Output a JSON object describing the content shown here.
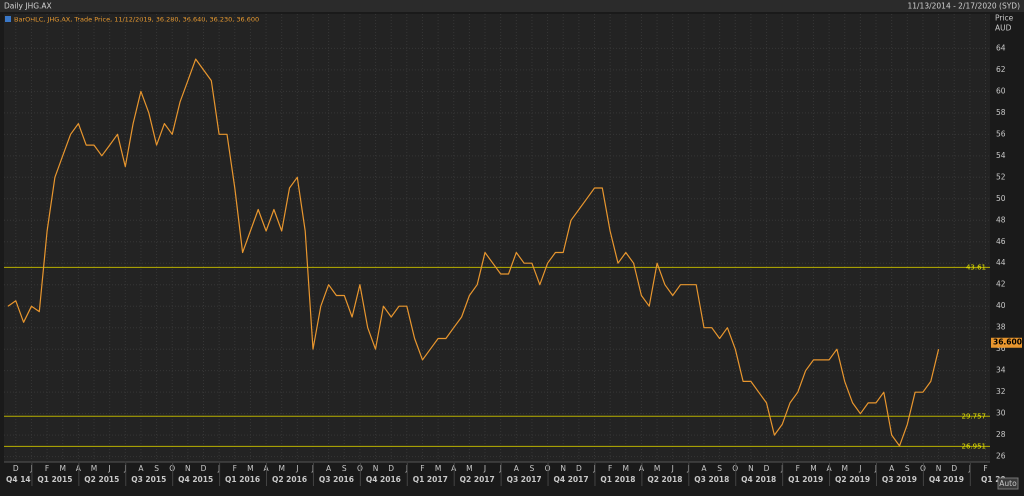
{
  "chart_data": {
    "type": "line",
    "title": "Daily JHG.AX",
    "date_range": "11/13/2014 - 2/17/2020 (SYD)",
    "legend": "BarOHLC, JHG.AX, Trade Price, 11/12/2019, 36.280, 36.640, 36.230, 36.600",
    "y_axis_label": [
      "Price",
      "AUD"
    ],
    "auto_button": "Auto",
    "color": "#e8962e",
    "grid": true,
    "categories": [
      null,
      "D",
      null,
      "J",
      null,
      "F",
      null,
      "M",
      null,
      "A",
      null,
      "M",
      null,
      "J",
      null,
      "J",
      null,
      "A",
      null,
      "S",
      null,
      "O",
      null,
      "N",
      null,
      "D",
      null,
      "J",
      null,
      "F",
      null,
      "M",
      null,
      "A",
      null,
      "M",
      null,
      "J",
      null,
      "J",
      null,
      "A",
      null,
      "S",
      null,
      "O",
      null,
      "N",
      null,
      "D",
      null,
      "J",
      null,
      "F",
      null,
      "M",
      null,
      "A",
      null,
      "M",
      null,
      "J",
      null,
      "J",
      null,
      "A",
      null,
      "S",
      null,
      "O",
      null,
      "N",
      null,
      "D",
      null,
      "J",
      null,
      "F",
      null,
      "M",
      null,
      "A",
      null,
      "M",
      null,
      "J",
      null,
      "J",
      null,
      "A",
      null,
      "S",
      null,
      "O",
      null,
      "N",
      null,
      "D",
      null,
      "J",
      null,
      "F",
      null,
      "M",
      null,
      "A",
      null,
      "M",
      null,
      "J",
      null,
      "J",
      null,
      "A",
      null,
      "S",
      null,
      "O",
      null,
      "N",
      null,
      "D",
      null,
      "J",
      null,
      "F"
    ],
    "quarters": [
      "Q4 14",
      "Q1 2015",
      "Q2 2015",
      "Q3 2015",
      "Q4 2015",
      "Q1 2016",
      "Q2 2016",
      "Q3 2016",
      "Q4 2016",
      "Q1 2017",
      "Q2 2017",
      "Q3 2017",
      "Q4 2017",
      "Q1 2018",
      "Q2 2018",
      "Q3 2018",
      "Q4 2018",
      "Q1 2019",
      "Q2 2019",
      "Q3 2019",
      "Q4 2019",
      "Q1 20"
    ],
    "values": [
      40,
      40.5,
      38.5,
      40,
      39.5,
      47,
      52,
      54,
      56,
      57,
      55,
      55,
      54,
      55,
      56,
      53,
      57,
      60,
      58,
      55,
      57,
      56,
      59,
      61,
      63,
      62,
      61,
      56,
      56,
      51,
      45,
      47,
      49,
      47,
      49,
      47,
      51,
      52,
      47,
      36,
      40,
      42,
      41,
      41,
      39,
      42,
      38,
      36,
      40,
      39,
      40,
      40,
      37,
      35,
      36,
      37,
      37,
      38,
      39,
      41,
      42,
      45,
      44,
      43,
      43,
      45,
      44,
      44,
      42,
      44,
      45,
      45,
      48,
      49,
      50,
      51,
      51,
      47,
      44,
      45,
      44,
      41,
      40,
      44,
      42,
      41,
      42,
      42,
      42,
      38,
      38,
      37,
      38,
      36,
      33,
      33,
      32,
      31,
      28,
      29,
      31,
      32,
      34,
      35,
      35,
      35,
      36,
      33,
      31,
      30,
      31,
      31,
      32,
      28,
      27,
      29,
      32,
      32,
      33,
      36,
      null,
      null,
      null,
      null,
      null,
      null
    ],
    "ylim": [
      25.5,
      67.2
    ],
    "yticks": [
      26,
      28,
      30,
      32,
      34,
      36,
      38,
      40,
      42,
      44,
      46,
      48,
      50,
      52,
      54,
      56,
      58,
      60,
      62,
      64
    ],
    "reference_lines": [
      43.61,
      29.757,
      26.951
    ],
    "last_price": {
      "value": 36.6,
      "label": "36.600"
    }
  }
}
